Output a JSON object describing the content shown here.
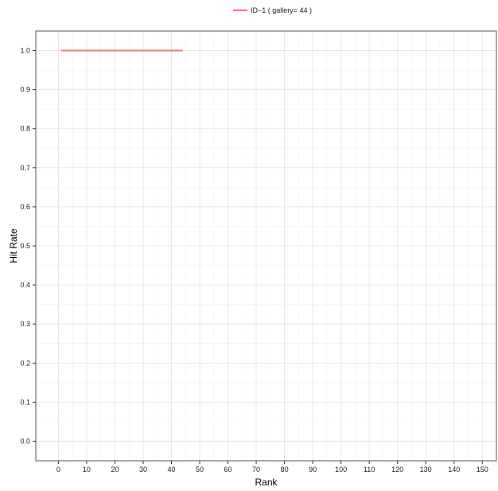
{
  "chart_data": {
    "type": "line",
    "xlabel": "Rank",
    "ylabel": "Hit Rate",
    "xlim": [
      -8,
      155
    ],
    "ylim": [
      -0.05,
      1.05
    ],
    "x_ticks": [
      0,
      10,
      20,
      30,
      40,
      50,
      60,
      70,
      80,
      90,
      100,
      110,
      120,
      130,
      140,
      150
    ],
    "y_ticks": [
      0.0,
      0.1,
      0.2,
      0.3,
      0.4,
      0.5,
      0.6,
      0.7,
      0.8,
      0.9,
      1.0
    ],
    "x_tick_labels": [
      "0",
      "10",
      "20",
      "30",
      "40",
      "50",
      "60",
      "70",
      "80",
      "90",
      "100",
      "110",
      "120",
      "130",
      "140",
      "150"
    ],
    "y_tick_labels": [
      "0.0",
      "0.1",
      "0.2",
      "0.3",
      "0.4",
      "0.5",
      "0.6",
      "0.7",
      "0.8",
      "0.9",
      "1.0"
    ],
    "grid": true,
    "legend": {
      "placement": "top-center",
      "entries": [
        "ID−1 ( gallery= 44 )"
      ]
    },
    "series": [
      {
        "name": "ID−1 ( gallery= 44 )",
        "color": "#F8766D",
        "x": [
          1,
          44
        ],
        "y": [
          1.0,
          1.0
        ]
      }
    ]
  }
}
